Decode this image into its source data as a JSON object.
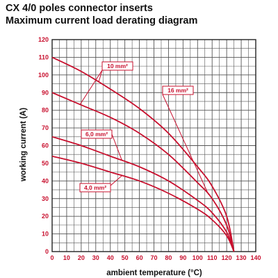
{
  "header": {
    "title": "CX 4/0 poles connector inserts",
    "subtitle": "Maximum current load derating diagram"
  },
  "chart_data": {
    "type": "line",
    "title": "CX 4/0 poles connector inserts",
    "subtitle": "Maximum current load derating diagram",
    "xlabel": "ambient temperature (°C)",
    "ylabel": "working current (A)",
    "xlim": [
      0,
      140
    ],
    "ylim": [
      0,
      120
    ],
    "x_ticks": [
      0,
      10,
      20,
      30,
      40,
      50,
      60,
      70,
      80,
      90,
      100,
      110,
      120,
      130,
      140
    ],
    "y_ticks": [
      0,
      10,
      20,
      30,
      40,
      50,
      60,
      70,
      80,
      90,
      100,
      110,
      120
    ],
    "grid": true,
    "line_color": "#c8102e",
    "tick_color": "#c8102e",
    "series": [
      {
        "name": "10 mm²",
        "x": [
          0,
          20,
          40,
          60,
          80,
          100,
          110,
          120,
          125
        ],
        "y": [
          110,
          102,
          92,
          81,
          67,
          48,
          37,
          20,
          0
        ]
      },
      {
        "name": "16 mm²",
        "x": [
          0,
          20,
          40,
          60,
          80,
          100,
          110,
          120,
          125
        ],
        "y": [
          90,
          83,
          76,
          67,
          55,
          39,
          30,
          15,
          0
        ]
      },
      {
        "name": "6,0 mm²",
        "x": [
          0,
          20,
          40,
          60,
          80,
          100,
          110,
          120,
          125
        ],
        "y": [
          65,
          60,
          54,
          48,
          40,
          29,
          22,
          11,
          0
        ]
      },
      {
        "name": "4,0 mm²",
        "x": [
          0,
          20,
          40,
          60,
          80,
          100,
          110,
          120,
          125
        ],
        "y": [
          54,
          50,
          45,
          40,
          33,
          24,
          18,
          9,
          0
        ]
      }
    ]
  }
}
